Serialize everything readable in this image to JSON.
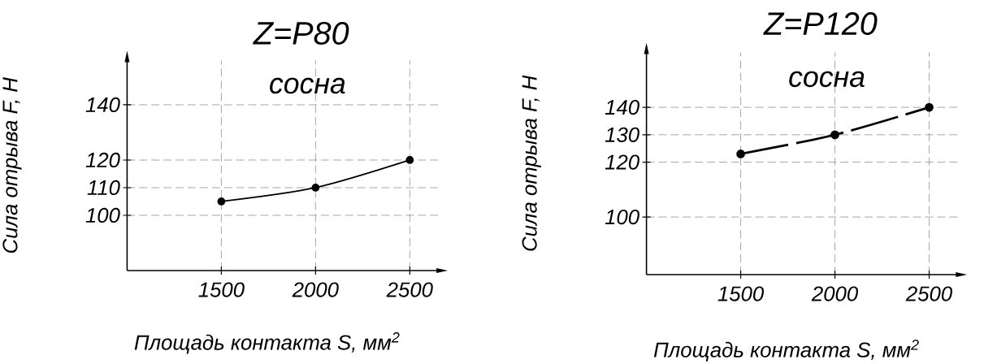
{
  "chart_data": [
    {
      "type": "line",
      "title": "Z=P80",
      "subtitle": "сосна",
      "xlabel": "Площадь контакта S, мм$^{2}$",
      "ylabel": "Сила отрыва F, Н",
      "x": [
        1500,
        2000,
        2500
      ],
      "values": [
        105,
        110,
        120
      ],
      "color": "#000000",
      "xlim": [
        1000,
        2650
      ],
      "ylim": [
        80,
        156
      ],
      "xticks": [
        1500,
        2000,
        2500
      ],
      "yticks": [
        100,
        110,
        120,
        140
      ],
      "grid": true,
      "marker": "circle",
      "line_style": "solid"
    },
    {
      "type": "line",
      "title": "Z=P120",
      "subtitle": "сосна",
      "xlabel": "Площадь контакта S, мм$^{2}$",
      "ylabel": "Сила отрыва F, Н",
      "x": [
        1500,
        2000,
        2500
      ],
      "values": [
        123,
        130,
        140
      ],
      "color": "#000000",
      "xlim": [
        1000,
        2650
      ],
      "ylim": [
        79,
        160
      ],
      "xticks": [
        1500,
        2000,
        2500
      ],
      "yticks": [
        100,
        120,
        130,
        140
      ],
      "grid": true,
      "marker": "circle",
      "line_style": "dashed"
    }
  ]
}
